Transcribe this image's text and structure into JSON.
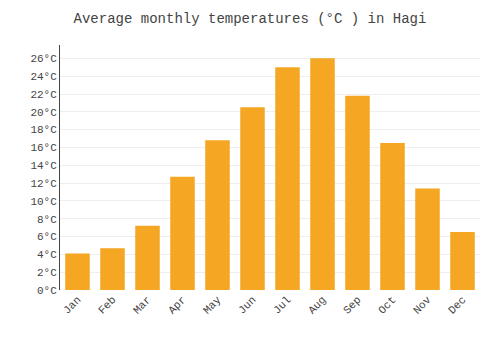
{
  "chart_data": {
    "type": "bar",
    "title": "Average monthly temperatures (°C ) in Hagi",
    "categories": [
      "Jan",
      "Feb",
      "Mar",
      "Apr",
      "May",
      "Jun",
      "Jul",
      "Aug",
      "Sep",
      "Oct",
      "Nov",
      "Dec"
    ],
    "values": [
      4.1,
      4.7,
      7.2,
      12.7,
      16.8,
      20.5,
      25.0,
      26.0,
      21.8,
      16.5,
      11.4,
      6.5
    ],
    "color": "#F5A623",
    "ylim": [
      0,
      27.5
    ],
    "yticks": [
      {
        "value": 0,
        "label": "0°C"
      },
      {
        "value": 2,
        "label": "2°C"
      },
      {
        "value": 4,
        "label": "4°C"
      },
      {
        "value": 6,
        "label": "6°C"
      },
      {
        "value": 8,
        "label": "8°C"
      },
      {
        "value": 10,
        "label": "10°C"
      },
      {
        "value": 12,
        "label": "12°C"
      },
      {
        "value": 14,
        "label": "14°C"
      },
      {
        "value": 16,
        "label": "16°C"
      },
      {
        "value": 18,
        "label": "18°C"
      },
      {
        "value": 20,
        "label": "20°C"
      },
      {
        "value": 22,
        "label": "22°C"
      },
      {
        "value": 24,
        "label": "24°C"
      },
      {
        "value": 26,
        "label": "26°C"
      }
    ],
    "grid": true
  }
}
